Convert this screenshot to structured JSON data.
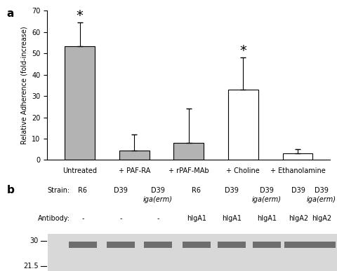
{
  "chart_data": {
    "type": "bar",
    "panel_label": "a",
    "y_label": "Relative Adherence (fold-increase)",
    "categories": [
      "Untreated",
      "+ PAF-RA",
      "+ rPAF-MAb",
      "+ Choline",
      "+ Ethanolamine"
    ],
    "values": [
      53.5,
      4.5,
      8,
      33,
      3
    ],
    "errors": [
      11,
      7.5,
      16,
      15,
      2
    ],
    "colors": [
      "#b3b3b3",
      "#b3b3b3",
      "#b3b3b3",
      "#ffffff",
      "#ffffff"
    ],
    "ylim": [
      0,
      70
    ],
    "yticks": [
      0,
      10,
      20,
      30,
      40,
      50,
      60,
      70
    ],
    "annotations": [
      {
        "text": "*",
        "category": "Untreated"
      },
      {
        "text": "*",
        "category": "+ Choline"
      }
    ]
  },
  "blot": {
    "panel_label": "b",
    "row_labels": {
      "strain": "Strain:",
      "antibody": "Antibody:"
    },
    "lanes": [
      {
        "strain": "R6",
        "allele": null,
        "antibody": "-"
      },
      {
        "strain": "D39",
        "allele": null,
        "antibody": "-"
      },
      {
        "strain": "D39",
        "allele": "iga(erm)",
        "antibody": "-"
      },
      {
        "strain": "R6",
        "allele": null,
        "antibody": "hIgA1"
      },
      {
        "strain": "D39",
        "allele": null,
        "antibody": "hIgA1"
      },
      {
        "strain": "D39",
        "allele": "iga(erm)",
        "antibody": "hIgA1"
      },
      {
        "strain": "D39",
        "allele": null,
        "antibody": "hIgA2"
      },
      {
        "strain": "D39",
        "allele": "iga(erm)",
        "antibody": "hIgA2"
      }
    ],
    "markers": [
      30,
      21.5
    ]
  }
}
